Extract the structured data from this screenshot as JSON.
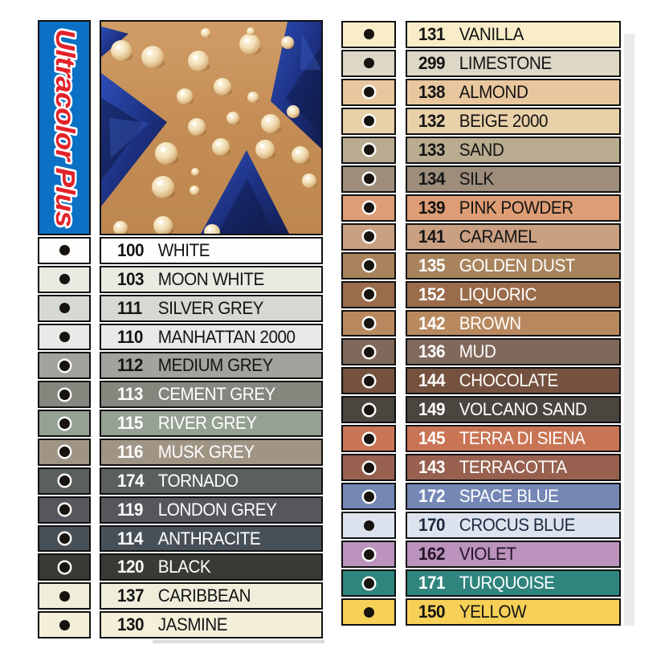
{
  "banner": {
    "label": "Ultracolor Plus",
    "bg": "#0a71c4",
    "text_color": "#e2222a"
  },
  "left_rows": [
    {
      "code": "100",
      "name": "WHITE",
      "bg": "#fefefc",
      "fg": "#141414",
      "ring": false
    },
    {
      "code": "103",
      "name": "MOON WHITE",
      "bg": "#e9ebe2",
      "fg": "#141414",
      "ring": false
    },
    {
      "code": "111",
      "name": "SILVER GREY",
      "bg": "#d6d8d3",
      "fg": "#141414",
      "ring": false
    },
    {
      "code": "110",
      "name": "MANHATTAN 2000",
      "bg": "#e9e9e7",
      "fg": "#141414",
      "ring": false
    },
    {
      "code": "112",
      "name": "MEDIUM GREY",
      "bg": "#a2a39d",
      "fg": "#141414",
      "ring": true
    },
    {
      "code": "113",
      "name": "CEMENT GREY",
      "bg": "#85877f",
      "fg": "#ffffff",
      "ring": true
    },
    {
      "code": "115",
      "name": "RIVER GREY",
      "bg": "#95a192",
      "fg": "#ffffff",
      "ring": true
    },
    {
      "code": "116",
      "name": "MUSK GREY",
      "bg": "#a09585",
      "fg": "#ffffff",
      "ring": true
    },
    {
      "code": "174",
      "name": "TORNADO",
      "bg": "#5a605e",
      "fg": "#ffffff",
      "ring": true
    },
    {
      "code": "119",
      "name": "LONDON GREY",
      "bg": "#56565c",
      "fg": "#ffffff",
      "ring": true
    },
    {
      "code": "114",
      "name": "ANTHRACITE",
      "bg": "#485057",
      "fg": "#ffffff",
      "ring": true
    },
    {
      "code": "120",
      "name": "BLACK",
      "bg": "#3b3934",
      "fg": "#ffffff",
      "ring": true
    },
    {
      "code": "137",
      "name": "CARIBBEAN",
      "bg": "#efeedb",
      "fg": "#141414",
      "ring": false
    },
    {
      "code": "130",
      "name": "JASMINE",
      "bg": "#f3efd9",
      "fg": "#141414",
      "ring": false
    }
  ],
  "right_rows": [
    {
      "code": "131",
      "name": "VANILLA",
      "bg": "#f8edc8",
      "fg": "#141414",
      "ring": false
    },
    {
      "code": "299",
      "name": "LIMESTONE",
      "bg": "#dcd7c6",
      "fg": "#141414",
      "ring": false
    },
    {
      "code": "138",
      "name": "ALMOND",
      "bg": "#e9c79e",
      "fg": "#141414",
      "ring": true
    },
    {
      "code": "132",
      "name": "BEIGE 2000",
      "bg": "#e8d0a8",
      "fg": "#141414",
      "ring": true
    },
    {
      "code": "133",
      "name": "SAND",
      "bg": "#b9ac90",
      "fg": "#141414",
      "ring": true
    },
    {
      "code": "134",
      "name": "SILK",
      "bg": "#9d8d7a",
      "fg": "#141414",
      "ring": true
    },
    {
      "code": "139",
      "name": "PINK POWDER",
      "bg": "#de9d75",
      "fg": "#141414",
      "ring": true
    },
    {
      "code": "141",
      "name": "CARAMEL",
      "bg": "#c9a081",
      "fg": "#141414",
      "ring": true
    },
    {
      "code": "135",
      "name": "GOLDEN DUST",
      "bg": "#a8835c",
      "fg": "#ffffff",
      "ring": true
    },
    {
      "code": "152",
      "name": "LIQUORIC",
      "bg": "#9b6c4b",
      "fg": "#ffffff",
      "ring": true
    },
    {
      "code": "142",
      "name": "BROWN",
      "bg": "#b8895f",
      "fg": "#ffffff",
      "ring": true
    },
    {
      "code": "136",
      "name": "MUD",
      "bg": "#80695b",
      "fg": "#ffffff",
      "ring": true
    },
    {
      "code": "144",
      "name": "CHOCOLATE",
      "bg": "#75523f",
      "fg": "#ffffff",
      "ring": true
    },
    {
      "code": "149",
      "name": "VOLCANO SAND",
      "bg": "#4b4540",
      "fg": "#ffffff",
      "ring": true
    },
    {
      "code": "145",
      "name": "TERRA DI SIENA",
      "bg": "#c97454",
      "fg": "#ffffff",
      "ring": true
    },
    {
      "code": "143",
      "name": "TERRACOTTA",
      "bg": "#98614f",
      "fg": "#ffffff",
      "ring": true
    },
    {
      "code": "172",
      "name": "SPACE BLUE",
      "bg": "#7487b5",
      "fg": "#ffffff",
      "ring": true
    },
    {
      "code": "170",
      "name": "CROCUS BLUE",
      "bg": "#dde3ee",
      "fg": "#1e2940",
      "ring": false
    },
    {
      "code": "162",
      "name": "VIOLET",
      "bg": "#bb93bd",
      "fg": "#231426",
      "ring": true
    },
    {
      "code": "171",
      "name": "TURQUOISE",
      "bg": "#2f857d",
      "fg": "#ffffff",
      "ring": true
    },
    {
      "code": "150",
      "name": "YELLOW",
      "bg": "#f6d057",
      "fg": "#141414",
      "ring": false
    }
  ]
}
